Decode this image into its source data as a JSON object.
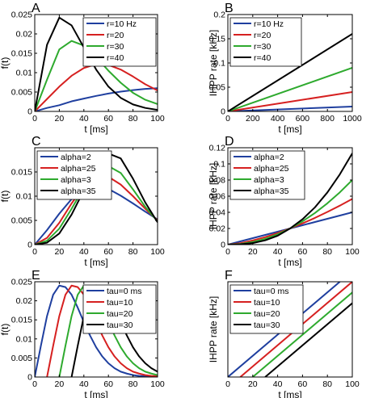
{
  "chart_data": [
    {
      "panel_letter": "A",
      "type": "line",
      "xlabel": "t [ms]",
      "ylabel": "f(t)",
      "xlim": [
        0,
        100
      ],
      "ylim": [
        0,
        0.025
      ],
      "xticks": [
        0,
        20,
        40,
        60,
        80,
        100
      ],
      "xtick_labels": [
        "0",
        "20",
        "40",
        "60",
        "80",
        "100"
      ],
      "yticks": [
        0,
        0.005,
        0.01,
        0.015,
        0.02,
        0.025
      ],
      "ytick_labels": [
        "0",
        "0.005",
        "0.01",
        "0.015",
        "0.02",
        "0.025"
      ],
      "legend": "top-right",
      "series": [
        {
          "name": "r=10 Hz",
          "color": "#1f3f9f",
          "x": [
            0,
            10,
            20,
            30,
            40,
            50,
            60,
            70,
            80,
            90,
            100
          ],
          "y": [
            0,
            0.0009,
            0.0016,
            0.0026,
            0.0033,
            0.004,
            0.0046,
            0.0051,
            0.0055,
            0.0058,
            0.006
          ]
        },
        {
          "name": "r=20",
          "color": "#d62020",
          "x": [
            0,
            10,
            20,
            30,
            40,
            50,
            60,
            70,
            80,
            90,
            100
          ],
          "y": [
            0,
            0.0032,
            0.0064,
            0.0092,
            0.0112,
            0.0122,
            0.012,
            0.0108,
            0.009,
            0.007,
            0.0054
          ]
        },
        {
          "name": "r=30",
          "color": "#2eaa2e",
          "x": [
            0,
            10,
            20,
            30,
            40,
            50,
            60,
            70,
            80,
            90,
            100
          ],
          "y": [
            0,
            0.0082,
            0.016,
            0.0182,
            0.017,
            0.014,
            0.0105,
            0.0074,
            0.0048,
            0.003,
            0.0019
          ]
        },
        {
          "name": "r=40",
          "color": "#000000",
          "x": [
            0,
            10,
            20,
            30,
            40,
            50,
            60,
            70,
            80,
            90,
            100
          ],
          "y": [
            0,
            0.0172,
            0.0242,
            0.0222,
            0.0165,
            0.0108,
            0.0064,
            0.0035,
            0.0018,
            0.0009,
            0.0004
          ]
        }
      ]
    },
    {
      "panel_letter": "B",
      "type": "line",
      "xlabel": "t [ms]",
      "ylabel": "IHPP rate [kHz]",
      "xlim": [
        0,
        1000
      ],
      "ylim": [
        0,
        0.2
      ],
      "xticks": [
        0,
        200,
        400,
        600,
        800,
        1000
      ],
      "xtick_labels": [
        "0",
        "200",
        "400",
        "600",
        "800",
        "1000"
      ],
      "yticks": [
        0,
        0.05,
        0.1,
        0.15,
        0.2
      ],
      "ytick_labels": [
        "0",
        "0.05",
        "0.1",
        "0.15",
        "0.2"
      ],
      "legend": "top-left",
      "series": [
        {
          "name": "r=10 Hz",
          "color": "#1f3f9f",
          "x": [
            0,
            1000
          ],
          "y": [
            0,
            0.01
          ]
        },
        {
          "name": "r=20",
          "color": "#d62020",
          "x": [
            0,
            1000
          ],
          "y": [
            0,
            0.04
          ]
        },
        {
          "name": "r=30",
          "color": "#2eaa2e",
          "x": [
            0,
            1000
          ],
          "y": [
            0,
            0.09
          ]
        },
        {
          "name": "r=40",
          "color": "#000000",
          "x": [
            0,
            1000
          ],
          "y": [
            0,
            0.16
          ]
        }
      ]
    },
    {
      "panel_letter": "C",
      "type": "line",
      "xlabel": "t [ms]",
      "ylabel": "f(t)",
      "xlim": [
        0,
        100
      ],
      "ylim": [
        0,
        0.02
      ],
      "xticks": [
        0,
        20,
        40,
        60,
        80,
        100
      ],
      "xtick_labels": [
        "0",
        "20",
        "40",
        "60",
        "80",
        "100"
      ],
      "yticks": [
        0,
        0.005,
        0.01,
        0.015
      ],
      "ytick_labels": [
        "0",
        "0.005",
        "0.01",
        "0.015"
      ],
      "legend": "top-left",
      "series": [
        {
          "name": "alpha=2",
          "color": "#1f3f9f",
          "x": [
            0,
            10,
            20,
            30,
            40,
            50,
            60,
            70,
            80,
            90,
            100
          ],
          "y": [
            0,
            0.003,
            0.0064,
            0.0094,
            0.0112,
            0.0119,
            0.0115,
            0.0101,
            0.0085,
            0.0068,
            0.0052
          ]
        },
        {
          "name": "alpha=25",
          "color": "#d62020",
          "x": [
            0,
            10,
            20,
            30,
            40,
            50,
            60,
            70,
            80,
            90,
            100
          ],
          "y": [
            0,
            0.0014,
            0.0045,
            0.0085,
            0.012,
            0.0138,
            0.014,
            0.0124,
            0.01,
            0.0074,
            0.005
          ]
        },
        {
          "name": "alpha=3",
          "color": "#2eaa2e",
          "x": [
            0,
            10,
            20,
            30,
            40,
            50,
            60,
            70,
            80,
            90,
            100
          ],
          "y": [
            0,
            0.0008,
            0.0033,
            0.0074,
            0.0118,
            0.015,
            0.0162,
            0.0148,
            0.0114,
            0.0078,
            0.0048
          ]
        },
        {
          "name": "alpha=35",
          "color": "#000000",
          "x": [
            0,
            10,
            20,
            30,
            40,
            50,
            60,
            70,
            80,
            90,
            100
          ],
          "y": [
            0,
            0.0004,
            0.0023,
            0.0062,
            0.0112,
            0.0162,
            0.0188,
            0.0178,
            0.0136,
            0.0087,
            0.0046
          ]
        }
      ]
    },
    {
      "panel_letter": "D",
      "type": "line",
      "xlabel": "t [ms]",
      "ylabel": "IHPP rate [kHz]",
      "xlim": [
        0,
        100
      ],
      "ylim": [
        0,
        0.12
      ],
      "xticks": [
        0,
        20,
        40,
        60,
        80,
        100
      ],
      "xtick_labels": [
        "0",
        "20",
        "40",
        "60",
        "80",
        "100"
      ],
      "yticks": [
        0,
        0.02,
        0.04,
        0.06,
        0.08,
        0.1,
        0.12
      ],
      "ytick_labels": [
        "0",
        "0.02",
        "0.04",
        "0.06",
        "0.08",
        "0.1",
        "0.12"
      ],
      "legend": "top-left",
      "series": [
        {
          "name": "alpha=2",
          "color": "#1f3f9f",
          "x": [
            0,
            10,
            20,
            30,
            40,
            50,
            60,
            70,
            80,
            90,
            100
          ],
          "y": [
            0,
            0.004,
            0.008,
            0.012,
            0.016,
            0.02,
            0.024,
            0.028,
            0.032,
            0.036,
            0.04
          ]
        },
        {
          "name": "alpha=25",
          "color": "#d62020",
          "x": [
            0,
            10,
            20,
            30,
            40,
            50,
            60,
            70,
            80,
            90,
            100
          ],
          "y": [
            0,
            0.0018,
            0.0051,
            0.0093,
            0.0143,
            0.02,
            0.0263,
            0.0331,
            0.0405,
            0.0483,
            0.0566
          ]
        },
        {
          "name": "alpha=3",
          "color": "#2eaa2e",
          "x": [
            0,
            10,
            20,
            30,
            40,
            50,
            60,
            70,
            80,
            90,
            100
          ],
          "y": [
            0,
            0.0008,
            0.0032,
            0.0072,
            0.0128,
            0.02,
            0.0288,
            0.0392,
            0.0512,
            0.0648,
            0.08
          ]
        },
        {
          "name": "alpha=35",
          "color": "#000000",
          "x": [
            0,
            10,
            20,
            30,
            40,
            50,
            60,
            70,
            80,
            90,
            100
          ],
          "y": [
            0,
            0.0004,
            0.0019,
            0.0053,
            0.011,
            0.02,
            0.0314,
            0.0462,
            0.0647,
            0.0871,
            0.1131
          ]
        }
      ]
    },
    {
      "panel_letter": "E",
      "type": "line",
      "xlabel": "t [ms]",
      "ylabel": "f(t)",
      "xlim": [
        0,
        100
      ],
      "ylim": [
        0,
        0.025
      ],
      "xticks": [
        0,
        20,
        40,
        60,
        80,
        100
      ],
      "xtick_labels": [
        "0",
        "20",
        "40",
        "60",
        "80",
        "100"
      ],
      "yticks": [
        0,
        0.005,
        0.01,
        0.015,
        0.02,
        0.025
      ],
      "ytick_labels": [
        "0",
        "0.005",
        "0.01",
        "0.015",
        "0.02",
        "0.025"
      ],
      "legend": "top-right",
      "series": [
        {
          "name": "tau=0 ms",
          "color": "#1f3f9f",
          "x": [
            0,
            5,
            10,
            15,
            20,
            25,
            30,
            35,
            40,
            45,
            50,
            55,
            60,
            65,
            70,
            75,
            80,
            85,
            90,
            95,
            100
          ],
          "y": [
            0,
            0.0082,
            0.016,
            0.0216,
            0.024,
            0.0236,
            0.0216,
            0.0182,
            0.0144,
            0.0109,
            0.0078,
            0.0054,
            0.0036,
            0.0023,
            0.0014,
            0.0009,
            0.0005,
            0.0003,
            0.0002,
            0.0001,
            0
          ]
        },
        {
          "name": "tau=10",
          "color": "#d62020",
          "x": [
            10,
            15,
            20,
            25,
            30,
            35,
            40,
            45,
            50,
            55,
            60,
            65,
            70,
            75,
            80,
            85,
            90,
            95,
            100
          ],
          "y": [
            0,
            0.0082,
            0.016,
            0.0216,
            0.024,
            0.0236,
            0.0216,
            0.0182,
            0.0144,
            0.0109,
            0.0078,
            0.0054,
            0.0036,
            0.0023,
            0.0014,
            0.0009,
            0.0005,
            0.0003,
            0.0002
          ]
        },
        {
          "name": "tau=20",
          "color": "#2eaa2e",
          "x": [
            20,
            25,
            30,
            35,
            40,
            45,
            50,
            55,
            60,
            65,
            70,
            75,
            80,
            85,
            90,
            95,
            100
          ],
          "y": [
            0,
            0.0082,
            0.016,
            0.0216,
            0.024,
            0.0236,
            0.0216,
            0.0182,
            0.0144,
            0.0109,
            0.0078,
            0.0054,
            0.0036,
            0.0023,
            0.0014,
            0.0009,
            0.0005
          ]
        },
        {
          "name": "tau=30",
          "color": "#000000",
          "x": [
            30,
            35,
            40,
            45,
            50,
            55,
            60,
            65,
            70,
            75,
            80,
            85,
            90,
            95,
            100
          ],
          "y": [
            0,
            0.0082,
            0.016,
            0.0216,
            0.024,
            0.0236,
            0.0216,
            0.0182,
            0.0144,
            0.0109,
            0.0078,
            0.0054,
            0.0036,
            0.0023,
            0.0014
          ]
        }
      ]
    },
    {
      "panel_letter": "F",
      "type": "line",
      "xlabel": "t [ms]",
      "ylabel": "IHPP rate [kHz]",
      "xlim": [
        0,
        100
      ],
      "ylim": [
        0,
        0.16
      ],
      "xticks": [
        0,
        20,
        40,
        60,
        80,
        100
      ],
      "xtick_labels": [
        "0",
        "20",
        "40",
        "60",
        "80",
        "100"
      ],
      "yticks": [],
      "ytick_labels": [],
      "legend": "top-left",
      "series": [
        {
          "name": "tau=0 ms",
          "color": "#1f3f9f",
          "x": [
            0,
            90
          ],
          "y": [
            0,
            0.16
          ]
        },
        {
          "name": "tau=10",
          "color": "#d62020",
          "x": [
            10,
            100
          ],
          "y": [
            0,
            0.16
          ]
        },
        {
          "name": "tau=20",
          "color": "#2eaa2e",
          "x": [
            20,
            100
          ],
          "y": [
            0,
            0.142
          ]
        },
        {
          "name": "tau=30",
          "color": "#000000",
          "x": [
            30,
            100
          ],
          "y": [
            0,
            0.124
          ]
        }
      ]
    }
  ]
}
